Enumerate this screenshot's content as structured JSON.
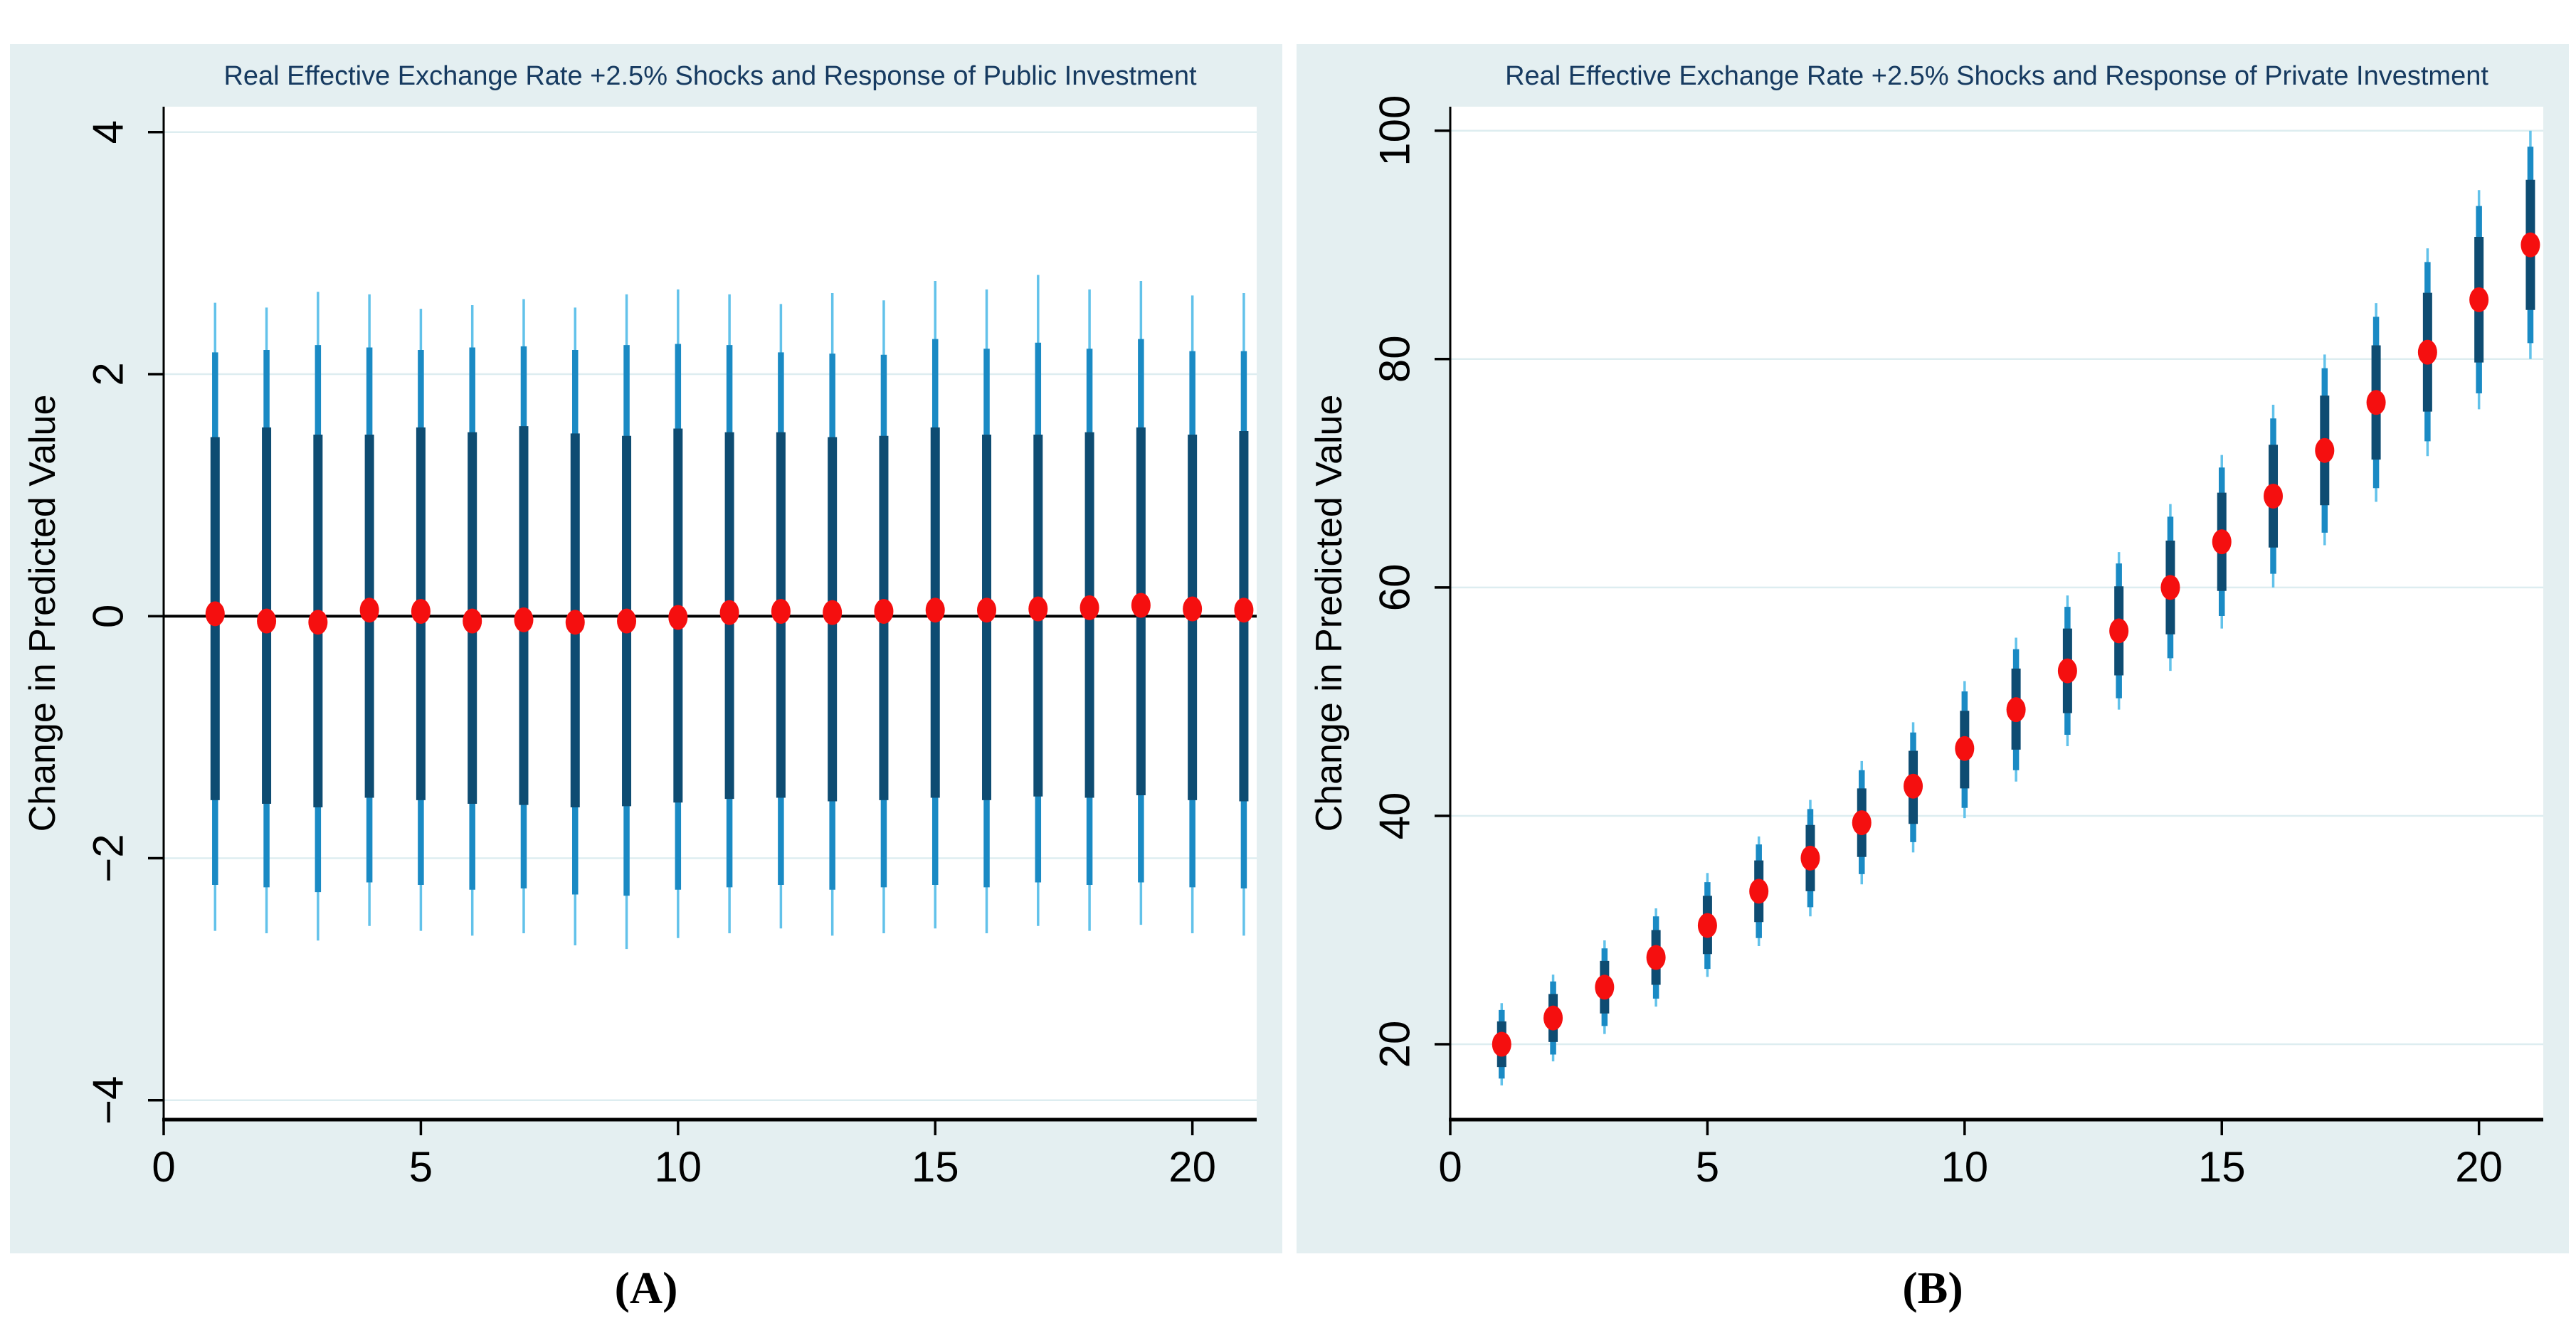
{
  "captions": {
    "a": "(A)",
    "b": "(B)"
  },
  "colors": {
    "panel_background": "#e4eff1",
    "plot_background": "#ffffff",
    "grid": "#ddedf0",
    "axis": "#000000",
    "title_text": "#163a60",
    "ci_inner": "#0e4c72",
    "ci_mid": "#1a8ac4",
    "ci_outer": "#62c2ea",
    "marker": "#f50f0f"
  },
  "chart_data": [
    {
      "type": "scatter",
      "title": "Real Effective Exchange Rate +2.5% Shocks and Response of Public Investment",
      "xlabel": "",
      "ylabel": "Change in Predicted Value",
      "legend_position": "none",
      "grid": true,
      "zero_line": true,
      "xlim": [
        0,
        21.25
      ],
      "ylim": [
        -4.16,
        4.21
      ],
      "xticks": {
        "values": [
          0,
          5,
          10,
          15,
          20
        ],
        "labels": [
          "0",
          "5",
          "10",
          "15",
          "20"
        ]
      },
      "yticks": {
        "values": [
          4,
          2,
          0,
          -2,
          -4
        ],
        "labels": [
          "4",
          "2",
          "0",
          "−2",
          "−4"
        ]
      },
      "x": [
        1,
        2,
        3,
        4,
        5,
        6,
        7,
        8,
        9,
        10,
        11,
        12,
        13,
        14,
        15,
        16,
        17,
        18,
        19,
        20,
        21
      ],
      "y": [
        0.02,
        -0.04,
        -0.05,
        0.05,
        0.04,
        -0.04,
        -0.03,
        -0.05,
        -0.04,
        -0.01,
        0.03,
        0.04,
        0.03,
        0.04,
        0.05,
        0.05,
        0.06,
        0.07,
        0.09,
        0.06,
        0.05
      ],
      "ci_inner": {
        "lo": [
          -1.52,
          -1.55,
          -1.58,
          -1.5,
          -1.52,
          -1.55,
          -1.56,
          -1.58,
          -1.57,
          -1.54,
          -1.51,
          -1.5,
          -1.53,
          -1.52,
          -1.5,
          -1.52,
          -1.49,
          -1.5,
          -1.48,
          -1.52,
          -1.53
        ],
        "hi": [
          1.48,
          1.56,
          1.5,
          1.5,
          1.56,
          1.52,
          1.57,
          1.51,
          1.49,
          1.55,
          1.52,
          1.52,
          1.48,
          1.49,
          1.56,
          1.5,
          1.5,
          1.52,
          1.56,
          1.5,
          1.53
        ]
      },
      "ci_mid": {
        "lo": [
          -2.22,
          -2.24,
          -2.28,
          -2.2,
          -2.22,
          -2.26,
          -2.25,
          -2.3,
          -2.31,
          -2.26,
          -2.24,
          -2.22,
          -2.26,
          -2.24,
          -2.22,
          -2.24,
          -2.2,
          -2.22,
          -2.2,
          -2.24,
          -2.25
        ],
        "hi": [
          2.18,
          2.2,
          2.24,
          2.22,
          2.2,
          2.22,
          2.23,
          2.2,
          2.24,
          2.25,
          2.24,
          2.18,
          2.17,
          2.16,
          2.29,
          2.21,
          2.26,
          2.21,
          2.29,
          2.19,
          2.19
        ]
      },
      "ci_outer": {
        "lo": [
          -2.6,
          -2.62,
          -2.68,
          -2.56,
          -2.6,
          -2.64,
          -2.62,
          -2.72,
          -2.75,
          -2.66,
          -2.62,
          -2.58,
          -2.64,
          -2.62,
          -2.58,
          -2.62,
          -2.56,
          -2.6,
          -2.55,
          -2.62,
          -2.64
        ],
        "hi": [
          2.59,
          2.55,
          2.68,
          2.66,
          2.54,
          2.57,
          2.62,
          2.55,
          2.66,
          2.7,
          2.66,
          2.58,
          2.67,
          2.61,
          2.77,
          2.7,
          2.82,
          2.7,
          2.77,
          2.65,
          2.67
        ]
      }
    },
    {
      "type": "scatter",
      "title": "Real Effective Exchange Rate +2.5% Shocks and Response of Private Investment",
      "xlabel": "",
      "ylabel": "Change in Predicted Value",
      "legend_position": "none",
      "grid": true,
      "zero_line": false,
      "xlim": [
        0,
        21.25
      ],
      "ylim": [
        13.4,
        102.1
      ],
      "xticks": {
        "values": [
          0,
          5,
          10,
          15,
          20
        ],
        "labels": [
          "0",
          "5",
          "10",
          "15",
          "20"
        ]
      },
      "yticks": {
        "values": [
          20,
          40,
          60,
          80,
          100
        ],
        "labels": [
          "20",
          "40",
          "60",
          "80",
          "100"
        ]
      },
      "x": [
        1,
        2,
        3,
        4,
        5,
        6,
        7,
        8,
        9,
        10,
        11,
        12,
        13,
        14,
        15,
        16,
        17,
        18,
        19,
        20,
        21
      ],
      "y": [
        20.0,
        22.3,
        25.0,
        27.6,
        30.4,
        33.4,
        36.3,
        39.4,
        42.6,
        45.9,
        49.3,
        52.7,
        56.2,
        60.0,
        64.0,
        68.0,
        72.0,
        76.2,
        80.6,
        85.2,
        90.0
      ],
      "ci_inner": {
        "lo": [
          18.0,
          20.2,
          22.7,
          25.2,
          27.9,
          30.7,
          33.4,
          36.4,
          39.3,
          42.4,
          45.8,
          49.0,
          52.3,
          55.9,
          59.7,
          63.5,
          67.2,
          71.2,
          75.4,
          79.7,
          84.3
        ],
        "hi": [
          22.0,
          24.4,
          27.3,
          30.0,
          33.0,
          36.1,
          39.2,
          42.4,
          45.7,
          49.2,
          52.9,
          56.4,
          60.1,
          64.1,
          68.3,
          72.5,
          76.8,
          81.2,
          85.8,
          90.7,
          95.7
        ]
      },
      "ci_mid": {
        "lo": [
          17.0,
          19.1,
          21.6,
          24.0,
          26.6,
          29.3,
          32.0,
          34.9,
          37.7,
          40.7,
          44.0,
          47.1,
          50.3,
          53.8,
          57.5,
          61.2,
          64.8,
          68.7,
          72.8,
          77.0,
          81.4
        ],
        "hi": [
          23.0,
          25.5,
          28.4,
          31.2,
          34.2,
          37.5,
          40.6,
          44.0,
          47.3,
          50.9,
          54.6,
          58.3,
          62.1,
          66.2,
          70.5,
          74.8,
          79.2,
          83.7,
          88.5,
          93.4,
          98.6
        ]
      },
      "ci_outer": {
        "lo": [
          16.4,
          18.5,
          20.9,
          23.3,
          25.9,
          28.6,
          31.2,
          34.0,
          36.8,
          39.8,
          43.0,
          46.1,
          49.3,
          52.7,
          56.4,
          60.0,
          63.7,
          67.5,
          71.5,
          75.6,
          80.0
        ],
        "hi": [
          23.6,
          26.1,
          29.1,
          31.9,
          35.0,
          38.2,
          41.4,
          44.8,
          48.2,
          51.8,
          55.6,
          59.3,
          63.1,
          67.3,
          71.6,
          76.0,
          80.4,
          84.9,
          89.7,
          94.8,
          100.0
        ]
      }
    }
  ]
}
